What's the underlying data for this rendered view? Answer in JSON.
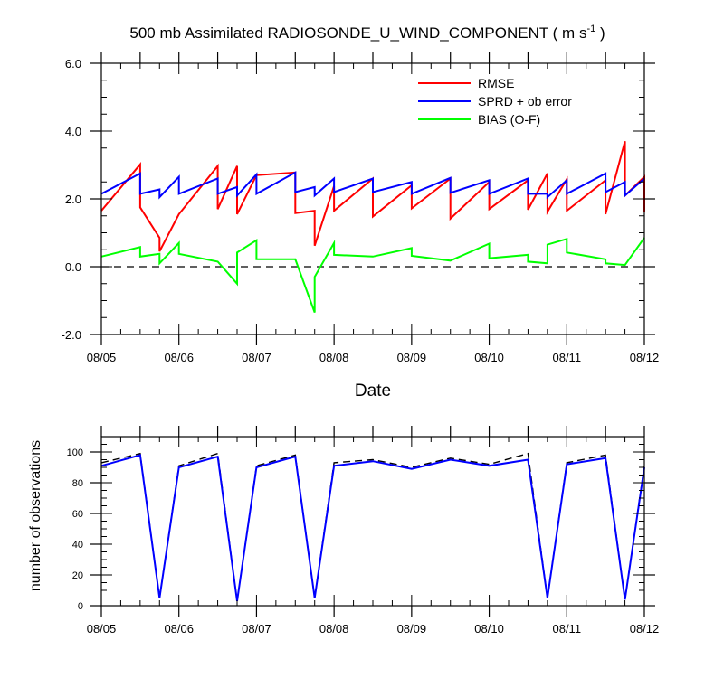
{
  "chart_data": [
    {
      "type": "line",
      "title": "500 mb Assimilated RADIOSONDE_U_WIND_COMPONENT ( m s",
      "title_unit_exponent": "-1",
      "title_close": " )",
      "xlabel": "Date",
      "ylabel": "",
      "x_tick_labels": [
        "08/05",
        "08/06",
        "08/07",
        "08/08",
        "08/09",
        "08/10",
        "08/11",
        "08/12"
      ],
      "y_tick_labels": [
        "-2.0",
        "0.0",
        "2.0",
        "4.0",
        "6.0"
      ],
      "xlim": [
        0,
        7
      ],
      "ylim": [
        -2.0,
        6.0
      ],
      "zero_line": true,
      "legend_position": "top-right",
      "series": [
        {
          "name": "RMSE",
          "color": "#ff0000",
          "segments": [
            [
              [
                0.0,
                1.65
              ],
              [
                0.5,
                3.02
              ],
              [
                0.5,
                1.75
              ],
              [
                0.75,
                0.85
              ],
              [
                0.75,
                0.45
              ],
              [
                1.0,
                1.55
              ],
              [
                1.0,
                1.55
              ],
              [
                1.5,
                2.97
              ],
              [
                1.5,
                1.7
              ],
              [
                1.75,
                2.97
              ],
              [
                1.75,
                1.55
              ],
              [
                2.0,
                1.5
              ],
              [
                2.0,
                1.5
              ]
            ],
            [
              [
                2.5,
                1.58
              ],
              [
                2.75,
                1.65
              ],
              [
                2.75,
                0.62
              ],
              [
                3.0,
                2.38
              ],
              [
                3.0,
                1.65
              ],
              [
                3.5,
                1.49
              ],
              [
                4.0,
                1.72
              ],
              [
                4.5,
                1.42
              ],
              [
                5.0,
                1.7
              ],
              [
                5.5,
                1.65
              ],
              [
                5.75,
                1.65
              ],
              [
                6.0,
                1.65
              ],
              [
                6.5,
                1.55
              ],
              [
                6.75,
                3.7
              ],
              [
                6.75,
                2.15
              ],
              [
                7.0,
                2.65
              ],
              [
                7.0,
                1.62
              ]
            ]
          ],
          "x": [
            0.0,
            0.5,
            0.5,
            0.75,
            0.75,
            1.0,
            1.5,
            1.5,
            1.75,
            1.75,
            2.0,
            2.5,
            2.5,
            2.75,
            2.75,
            3.0,
            3.0,
            3.5,
            3.5,
            4.0,
            4.0,
            4.5,
            4.5,
            5.0,
            5.0,
            5.5,
            5.5,
            5.75,
            5.75,
            6.0,
            6.0,
            6.5,
            6.5,
            6.75,
            6.75,
            7.0,
            7.0
          ],
          "values": [
            1.65,
            3.02,
            1.75,
            0.85,
            0.45,
            1.55,
            2.97,
            1.7,
            2.97,
            1.55,
            2.7,
            2.78,
            1.58,
            1.65,
            0.62,
            2.38,
            1.65,
            2.6,
            1.48,
            2.4,
            1.72,
            2.6,
            1.42,
            2.5,
            1.7,
            2.55,
            1.68,
            2.75,
            1.62,
            2.58,
            1.65,
            2.55,
            1.55,
            3.7,
            2.1,
            2.65,
            1.62
          ]
        },
        {
          "name": "SPRD + ob error",
          "color": "#0000ff",
          "x": [
            0.0,
            0.5,
            0.5,
            0.75,
            0.75,
            1.0,
            1.0,
            1.5,
            1.5,
            1.75,
            1.75,
            2.0,
            2.0,
            2.5,
            2.5,
            2.75,
            2.75,
            3.0,
            3.0,
            3.5,
            3.5,
            4.0,
            4.0,
            4.5,
            4.5,
            5.0,
            5.0,
            5.5,
            5.5,
            5.75,
            5.75,
            6.0,
            6.0,
            6.5,
            6.5,
            6.75,
            6.75,
            7.0
          ],
          "values": [
            2.15,
            2.75,
            2.15,
            2.28,
            2.05,
            2.65,
            2.15,
            2.6,
            2.15,
            2.35,
            2.1,
            2.72,
            2.15,
            2.78,
            2.2,
            2.35,
            2.1,
            2.6,
            2.2,
            2.6,
            2.2,
            2.5,
            2.15,
            2.62,
            2.18,
            2.55,
            2.15,
            2.6,
            2.15,
            2.15,
            2.05,
            2.55,
            2.15,
            2.75,
            2.2,
            2.5,
            2.1,
            2.6
          ]
        },
        {
          "name": "BIAS (O-F)",
          "color": "#00ff00",
          "x": [
            0.0,
            0.5,
            0.5,
            0.75,
            0.75,
            1.0,
            1.0,
            1.5,
            1.75,
            1.75,
            2.0,
            2.0,
            2.5,
            2.75,
            2.75,
            3.0,
            3.0,
            3.5,
            4.0,
            4.0,
            4.5,
            5.0,
            5.0,
            5.5,
            5.5,
            5.75,
            5.75,
            6.0,
            6.0,
            6.5,
            6.5,
            6.75,
            7.0
          ],
          "values": [
            0.3,
            0.58,
            0.3,
            0.38,
            0.1,
            0.7,
            0.38,
            0.15,
            -0.5,
            0.42,
            0.78,
            0.22,
            0.22,
            -1.35,
            -0.3,
            0.7,
            0.35,
            0.3,
            0.55,
            0.32,
            0.18,
            0.68,
            0.25,
            0.35,
            0.15,
            0.1,
            0.65,
            0.82,
            0.42,
            0.22,
            0.1,
            0.05,
            0.85
          ]
        }
      ]
    },
    {
      "type": "line",
      "title": "",
      "xlabel": "",
      "ylabel": "number of observations",
      "x_tick_labels": [
        "08/05",
        "08/06",
        "08/07",
        "08/08",
        "08/09",
        "08/10",
        "08/11",
        "08/12"
      ],
      "y_tick_labels": [
        "0",
        "20",
        "40",
        "60",
        "80",
        "100"
      ],
      "xlim": [
        0,
        7
      ],
      "ylim": [
        0,
        110
      ],
      "series": [
        {
          "color": "#000000",
          "dashed": true,
          "x": [
            0.0,
            0.5,
            0.75,
            1.0,
            1.5,
            1.75,
            2.0,
            2.5,
            2.75,
            3.0,
            3.5,
            4.0,
            4.5,
            5.0,
            5.5,
            5.75,
            6.0,
            6.5,
            6.75,
            7.0
          ],
          "values": [
            93,
            99,
            5,
            91,
            99,
            3,
            91,
            98,
            5,
            93,
            95,
            90,
            96,
            92,
            99,
            5,
            93,
            98,
            4,
            91
          ]
        },
        {
          "color": "#0000ff",
          "dashed": false,
          "x": [
            0.0,
            0.5,
            0.75,
            1.0,
            1.5,
            1.75,
            2.0,
            2.5,
            2.75,
            3.0,
            3.5,
            4.0,
            4.5,
            5.0,
            5.5,
            5.75,
            6.0,
            6.5,
            6.75,
            7.0
          ],
          "values": [
            91,
            98,
            5,
            90,
            97,
            3,
            90,
            97,
            5,
            91,
            94,
            89,
            95,
            91,
            95,
            5,
            92,
            96,
            4,
            90
          ]
        }
      ]
    }
  ]
}
